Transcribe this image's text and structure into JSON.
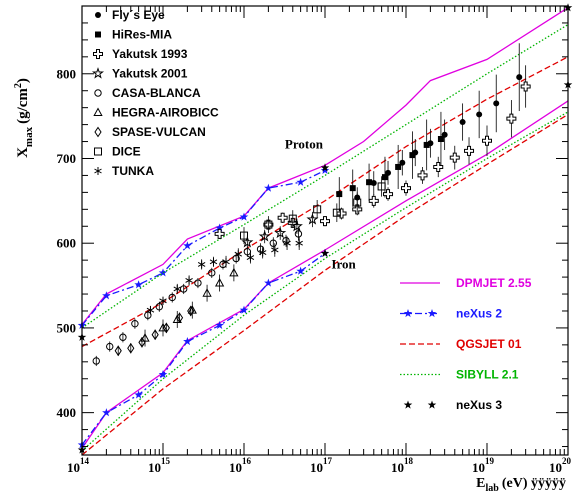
{
  "chart_data": {
    "type": "line",
    "title": "",
    "xlabel": "E",
    "xlabel_sub": "lab",
    "xlabel_unit": "(eV) ÿÿÿÿÿ",
    "ylabel": "X",
    "ylabel_sub": "max",
    "ylabel_unit": "(g/cm",
    "ylabel_sup": "2",
    "ylabel_close": ")",
    "x_scale": "log",
    "xlim": [
      100000000000000.0,
      1e+20
    ],
    "ylim": [
      350,
      880
    ],
    "x_ticks": [
      {
        "base": "10",
        "exp": "14",
        "value": 100000000000000.0
      },
      {
        "base": "10",
        "exp": "15",
        "value": 1000000000000000.0
      },
      {
        "base": "10",
        "exp": "16",
        "value": 1e+16
      },
      {
        "base": "10",
        "exp": "17",
        "value": 1e+17
      },
      {
        "base": "10",
        "exp": "18",
        "value": 1e+18
      },
      {
        "base": "10",
        "exp": "19",
        "value": 1e+19
      },
      {
        "base": "10",
        "exp": "20",
        "value": 1e+20
      }
    ],
    "y_ticks": [
      "400",
      "500",
      "600",
      "700",
      "800"
    ],
    "annotations": [
      {
        "text": "Proton",
        "x": 3.2e+16,
        "y": 712
      },
      {
        "text": "Iron",
        "x": 1.2e+17,
        "y": 570
      }
    ],
    "model_series": [
      {
        "name": "DPMJET 2.55",
        "color": "#e000e0",
        "style": "solid",
        "proton": {
          "x": [
            100000000000000.0,
            200000000000000.0,
            1000000000000000.0,
            2000000000000000.0,
            1e+16,
            2e+16,
            1e+17,
            3e+17,
            1e+18,
            2e+18,
            1e+19,
            1e+20
          ],
          "y": [
            504,
            540,
            575,
            605,
            632,
            665,
            692,
            720,
            763,
            792,
            817,
            878
          ]
        },
        "iron": {
          "x": [
            100000000000000.0,
            200000000000000.0,
            1000000000000000.0,
            2000000000000000.0,
            1e+16,
            2e+16,
            1e+17,
            1e+18,
            1e+19,
            1e+20
          ],
          "y": [
            358,
            400,
            447,
            485,
            522,
            553,
            592,
            650,
            705,
            768
          ]
        }
      },
      {
        "name": "neXus 2",
        "color": "#1a1aff",
        "style": "dashdot",
        "marker": "star",
        "proton": {
          "x": [
            100000000000000.0,
            200000000000000.0,
            500000000000000.0,
            1000000000000000.0,
            2000000000000000.0,
            5000000000000000.0,
            1e+16,
            2e+16,
            5e+16,
            1e+17
          ],
          "y": [
            503,
            538,
            551,
            565,
            597,
            618,
            631,
            665,
            672,
            686
          ]
        },
        "iron": {
          "x": [
            100000000000000.0,
            200000000000000.0,
            500000000000000.0,
            1000000000000000.0,
            2000000000000000.0,
            5000000000000000.0,
            1e+16,
            2e+16,
            5e+16,
            1e+17
          ],
          "y": [
            362,
            400,
            421,
            445,
            484,
            503,
            521,
            553,
            567,
            588
          ]
        }
      },
      {
        "name": "QGSJET 01",
        "color": "#e00000",
        "style": "dashed",
        "proton": {
          "x": [
            100000000000000.0,
            1000000000000000.0,
            1e+16,
            1e+17,
            1e+18,
            1e+19,
            1e+20
          ],
          "y": [
            478,
            530,
            592,
            650,
            714,
            770,
            820
          ]
        },
        "iron": {
          "x": [
            100000000000000.0,
            1000000000000000.0,
            1e+16,
            1e+17,
            1e+18,
            1e+19,
            1e+20
          ],
          "y": [
            350,
            428,
            497,
            568,
            633,
            693,
            752
          ]
        }
      },
      {
        "name": "SIBYLL 2.1",
        "color": "#00b400",
        "style": "dotted",
        "proton": {
          "x": [
            100000000000000.0,
            1000000000000000.0,
            1e+16,
            1e+17,
            1e+18,
            1e+19,
            1e+20
          ],
          "y": [
            500,
            565,
            622,
            680,
            740,
            800,
            858
          ]
        },
        "iron": {
          "x": [
            100000000000000.0,
            1000000000000000.0,
            1e+16,
            1e+17,
            1e+18,
            1e+19,
            1e+20
          ],
          "y": [
            355,
            440,
            515,
            582,
            642,
            700,
            755
          ]
        }
      },
      {
        "name": "neXus 3",
        "color": "#000000",
        "style": "markers",
        "marker": "star",
        "points": {
          "x": [
            100000000000000.0,
            1e+17,
            1e+20,
            100000000000000.0,
            1e+17,
            1e+20
          ],
          "y": [
            489,
            689,
            878,
            356,
            588,
            787
          ]
        }
      }
    ],
    "experiments": [
      {
        "name": "Fly´s Eye",
        "marker": "circle-filled",
        "points": [
          [
            2.5e+17,
            654
          ],
          [
            4e+17,
            671
          ],
          [
            6e+17,
            683
          ],
          [
            9e+17,
            695
          ],
          [
            1.3e+18,
            707
          ],
          [
            2e+18,
            718
          ],
          [
            3e+18,
            728
          ],
          [
            5e+18,
            743
          ],
          [
            8e+18,
            752
          ],
          [
            1.3e+19,
            765
          ],
          [
            2.5e+19,
            796
          ]
        ],
        "errors": [
          12,
          14,
          14,
          15,
          16,
          17,
          18,
          22,
          28,
          34,
          40
        ]
      },
      {
        "name": "HiRes-MIA",
        "marker": "square-filled",
        "points": [
          [
            1.5e+17,
            658
          ],
          [
            2.2e+17,
            665
          ],
          [
            3.5e+17,
            672
          ],
          [
            5.5e+17,
            678
          ],
          [
            8e+17,
            690
          ],
          [
            1.2e+18,
            704
          ],
          [
            1.8e+18,
            716
          ],
          [
            2.7e+18,
            723
          ]
        ],
        "errors": [
          20,
          22,
          22,
          24,
          26,
          28,
          30,
          32
        ]
      },
      {
        "name": "Yakutsk 1993",
        "marker": "cross-open",
        "points": [
          [
            5000000000000000.0,
            611
          ],
          [
            2e+16,
            622
          ],
          [
            3e+16,
            630
          ],
          [
            4e+16,
            624
          ],
          [
            1e+17,
            626
          ],
          [
            1.6e+17,
            635
          ],
          [
            2.5e+17,
            640
          ],
          [
            4e+17,
            650
          ],
          [
            6e+17,
            658
          ],
          [
            1e+18,
            665
          ],
          [
            1.6e+18,
            680
          ],
          [
            2.5e+18,
            690
          ],
          [
            4e+18,
            701
          ],
          [
            6e+18,
            709
          ],
          [
            1e+19,
            721
          ],
          [
            2e+19,
            747
          ],
          [
            3e+19,
            785
          ]
        ],
        "errors": [
          6,
          6,
          6,
          6,
          6,
          7,
          7,
          8,
          8,
          9,
          10,
          12,
          14,
          16,
          18,
          22,
          25
        ]
      },
      {
        "name": "Yakutsk 2001",
        "marker": "star-open",
        "points": [
          [
            1.1e+16,
            601
          ],
          [
            1.8e+16,
            608
          ],
          [
            2.8e+16,
            612
          ],
          [
            4.5e+16,
            620
          ],
          [
            7e+16,
            628
          ]
        ],
        "errors": [
          8,
          8,
          8,
          9,
          9
        ]
      },
      {
        "name": "CASA-BLANCA",
        "marker": "circle-open",
        "points": [
          [
            150000000000000.0,
            461
          ],
          [
            220000000000000.0,
            478
          ],
          [
            320000000000000.0,
            489
          ],
          [
            450000000000000.0,
            505
          ],
          [
            650000000000000.0,
            515
          ],
          [
            900000000000000.0,
            525
          ],
          [
            1300000000000000.0,
            536
          ],
          [
            1800000000000000.0,
            546
          ],
          [
            2700000000000000.0,
            553
          ],
          [
            4000000000000000.0,
            565
          ],
          [
            5500000000000000.0,
            575
          ],
          [
            8000000000000000.0,
            582
          ],
          [
            1.1e+16,
            590
          ],
          [
            1.6e+16,
            593
          ],
          [
            2.3e+16,
            600
          ],
          [
            3.3e+16,
            603
          ],
          [
            4.7e+16,
            611
          ]
        ],
        "errors": [
          6,
          6,
          6,
          6,
          6,
          6,
          6,
          6,
          6,
          6,
          6,
          6,
          6,
          7,
          7,
          7,
          8
        ]
      },
      {
        "name": "HEGRA-AIROBICC",
        "marker": "triangle-open",
        "points": [
          [
            600000000000000.0,
            488
          ],
          [
            1000000000000000.0,
            500
          ],
          [
            1500000000000000.0,
            510
          ],
          [
            2300000000000000.0,
            521
          ],
          [
            3500000000000000.0,
            541
          ],
          [
            5000000000000000.0,
            553
          ],
          [
            7500000000000000.0,
            565
          ]
        ],
        "errors": [
          10,
          10,
          10,
          10,
          10,
          10,
          10
        ]
      },
      {
        "name": "SPASE-VULCAN",
        "marker": "diamond-open",
        "points": [
          [
            280000000000000.0,
            473
          ],
          [
            400000000000000.0,
            476
          ],
          [
            550000000000000.0,
            483
          ],
          [
            800000000000000.0,
            492
          ],
          [
            1100000000000000.0,
            500
          ],
          [
            1600000000000000.0,
            512
          ],
          [
            2200000000000000.0,
            520
          ]
        ],
        "errors": [
          6,
          6,
          6,
          6,
          6,
          6,
          6
        ]
      },
      {
        "name": "DICE",
        "marker": "square-open",
        "points": [
          [
            1e+16,
            609
          ],
          [
            2e+16,
            622
          ],
          [
            4e+16,
            629
          ],
          [
            8e+16,
            640
          ],
          [
            1.4e+17,
            636
          ],
          [
            2.5e+17,
            648
          ],
          [
            5e+17,
            667
          ]
        ],
        "errors": [
          10,
          10,
          10,
          11,
          11,
          12,
          12
        ]
      },
      {
        "name": "TUNKA",
        "marker": "asterisk",
        "points": [
          [
            700000000000000.0,
            521
          ],
          [
            1000000000000000.0,
            532
          ],
          [
            1500000000000000.0,
            546
          ],
          [
            2100000000000000.0,
            556
          ],
          [
            3000000000000000.0,
            575
          ],
          [
            4200000000000000.0,
            578
          ],
          [
            6000000000000000.0,
            578
          ],
          [
            8500000000000000.0,
            587
          ],
          [
            1.2e+16,
            583
          ],
          [
            1.7e+16,
            589
          ],
          [
            2.4e+16,
            592
          ],
          [
            3.4e+16,
            600
          ],
          [
            4.8e+16,
            600
          ]
        ],
        "errors": [
          5,
          5,
          6,
          6,
          6,
          6,
          7,
          7,
          7,
          7,
          8,
          8,
          8
        ]
      }
    ],
    "legend_placement": "top-left (experiments), bottom-right (models)",
    "grid": false
  }
}
